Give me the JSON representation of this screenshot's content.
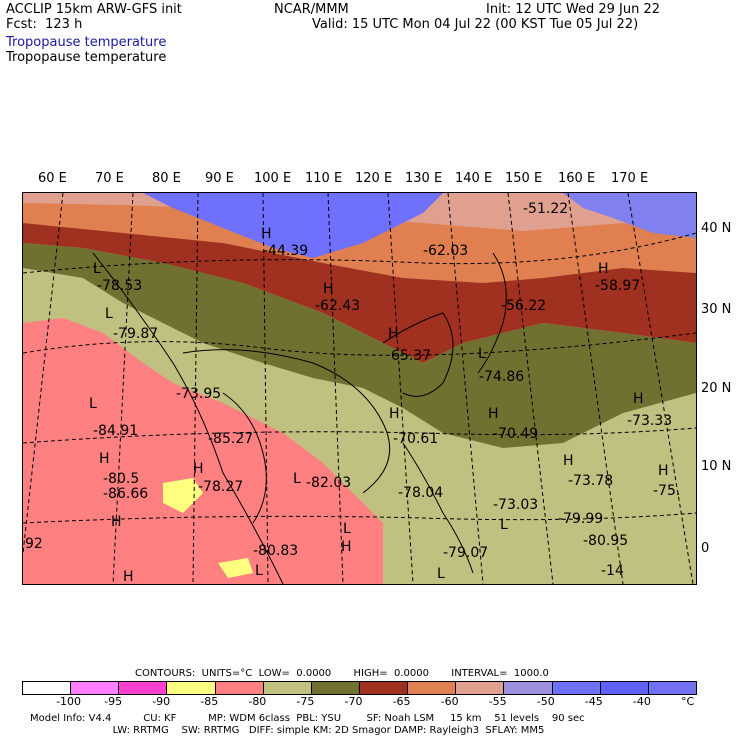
{
  "header": {
    "model": "ACCLIP 15km ARW-GFS init",
    "center": "NCAR/MMM",
    "init": "Init: 12 UTC Wed 29 Jun 22",
    "fcst": "Fcst:  123 h",
    "valid": "Valid: 15 UTC Mon 04 Jul 22 (00 KST Tue 05 Jul 22)",
    "field1": "Tropopause temperature",
    "field2": "Tropopause temperature"
  },
  "lon_labels": [
    "60 E",
    "70 E",
    "80 E",
    "90 E",
    "100 E",
    "110 E",
    "120 E",
    "130 E",
    "140 E",
    "150 E",
    "160 E",
    "170 E"
  ],
  "lat_labels": [
    "40 N",
    "30 N",
    "20 N",
    "10 N",
    "0"
  ],
  "map_labels": [
    {
      "t": "-51.22"
    },
    {
      "t": "H"
    },
    {
      "t": "-44.39"
    },
    {
      "t": "-62.03"
    },
    {
      "t": "L"
    },
    {
      "t": "-78.53"
    },
    {
      "t": "H"
    },
    {
      "t": "-58.97"
    },
    {
      "t": "H"
    },
    {
      "t": "-62.43"
    },
    {
      "t": "-56.22"
    },
    {
      "t": "L"
    },
    {
      "t": "-79.87"
    },
    {
      "t": "H"
    },
    {
      "t": "65.37"
    },
    {
      "t": "L"
    },
    {
      "t": "-74.86"
    },
    {
      "t": "-73.95"
    },
    {
      "t": "H"
    },
    {
      "t": "-73.33"
    },
    {
      "t": "L"
    },
    {
      "t": "-84.91"
    },
    {
      "t": "H"
    },
    {
      "t": "-70.61"
    },
    {
      "t": "H"
    },
    {
      "t": "-70.49"
    },
    {
      "t": "-85.27"
    },
    {
      "t": "H"
    },
    {
      "t": "-80.5"
    },
    {
      "t": "H"
    },
    {
      "t": "-78.27"
    },
    {
      "t": "L"
    },
    {
      "t": "-82.03"
    },
    {
      "t": "H"
    },
    {
      "t": "-73.78"
    },
    {
      "t": "H"
    },
    {
      "t": "-75."
    },
    {
      "t": "-78.04"
    },
    {
      "t": "L"
    },
    {
      "t": "-86.66"
    },
    {
      "t": "H"
    },
    {
      "t": "-73.03"
    },
    {
      "t": "L"
    },
    {
      "t": "-79.99"
    },
    {
      "t": "-80.95"
    },
    {
      "t": "H"
    },
    {
      "t": "-80.83"
    },
    {
      "t": "L"
    },
    {
      "t": "-79.07"
    },
    {
      "t": "L"
    },
    {
      "t": "H"
    },
    {
      "t": "-14"
    },
    {
      "t": "92"
    }
  ],
  "contours_line": "CONTOURS:  UNITS=°C  LOW=  0.0000       HIGH=  0.0000       INTERVAL=  1000.0",
  "legend": {
    "colors": [
      "#ffffff",
      "#ff80ff",
      "#ff40d0",
      "#ffff80",
      "#ff8080",
      "#c0c080",
      "#707030",
      "#a03020",
      "#e08050",
      "#e0a090",
      "#a090e0",
      "#7070ff",
      "#6060ff",
      "#7070f0"
    ],
    "ticks": [
      "-100",
      "-95",
      "-90",
      "-85",
      "-80",
      "-75",
      "-70",
      "-65",
      "-60",
      "-55",
      "-50",
      "-45",
      "-40",
      "°C"
    ]
  },
  "footer": {
    "line1": "Model Info: V4.4          CU: KF          MP: WDM 6class  PBL: YSU        SF: Noah LSM     15 km    51 levels    90 sec",
    "line2": "                          LW: RRTMG    SW: RRTMG   DIFF: simple KM: 2D Smagor DAMP: Rayleigh3  SFLAY: MM5"
  }
}
